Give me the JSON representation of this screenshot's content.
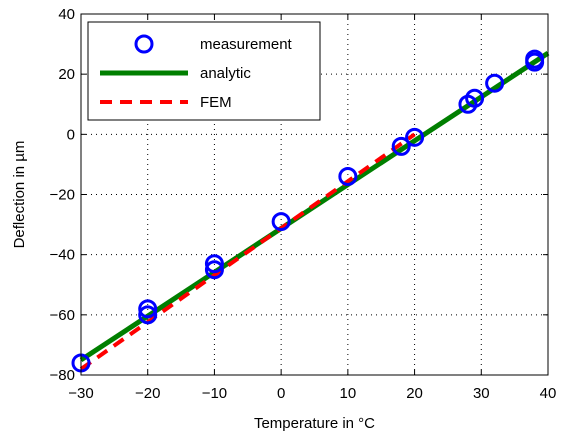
{
  "chart_data": {
    "type": "line",
    "xlabel": "Temperature in °C",
    "ylabel": "Deflection in µm",
    "xlim": [
      -30,
      40
    ],
    "ylim": [
      -80,
      40
    ],
    "xticks": [
      -30,
      -20,
      -10,
      0,
      10,
      20,
      30,
      40
    ],
    "yticks": [
      -80,
      -60,
      -40,
      -20,
      0,
      20,
      40
    ],
    "xtick_labels": [
      "−30",
      "−20",
      "−10",
      "0",
      "10",
      "20",
      "30",
      "40"
    ],
    "ytick_labels": [
      "−80",
      "−60",
      "−40",
      "−20",
      "0",
      "20",
      "40"
    ],
    "grid": "dotted",
    "legend_position": "top-left",
    "series": [
      {
        "name": "measurement",
        "kind": "scatter",
        "marker": "open-circle",
        "color": "#0000ff",
        "x": [
          -30,
          -20,
          -20,
          -10,
          -10,
          0,
          10,
          18,
          20,
          28,
          29,
          32,
          38,
          38
        ],
        "y": [
          -76,
          -58,
          -60,
          -43,
          -45,
          -29,
          -14,
          -4,
          -1,
          10,
          12,
          17,
          25,
          24
        ]
      },
      {
        "name": "analytic",
        "kind": "line",
        "style": "solid",
        "color": "#007f00",
        "x": [
          -30,
          40
        ],
        "y": [
          -75,
          27
        ]
      },
      {
        "name": "FEM",
        "kind": "line",
        "style": "dashed",
        "color": "#ff0000",
        "x": [
          -30,
          20
        ],
        "y": [
          -78,
          0
        ]
      }
    ]
  }
}
